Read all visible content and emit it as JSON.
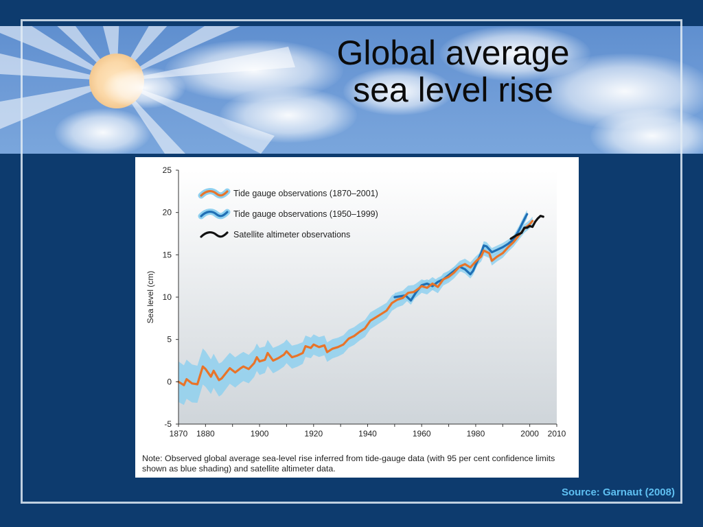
{
  "slide": {
    "title_line1": "Global average",
    "title_line2": "sea level rise",
    "source": "Source:  Garnaut (2008)",
    "colors": {
      "background": "#0d3b6e",
      "source_text": "#5fc0f2"
    }
  },
  "chart_data": {
    "type": "line",
    "title": "",
    "xlabel": "",
    "ylabel": "Sea level (cm)",
    "xlim": [
      1870,
      2010
    ],
    "ylim": [
      -5,
      25
    ],
    "x_ticks": [
      "1870",
      "1880",
      "1900",
      "1920",
      "1940",
      "1960",
      "1980",
      "2000",
      "2010"
    ],
    "y_ticks": [
      "-5",
      "0",
      "5",
      "10",
      "15",
      "20",
      "25"
    ],
    "grid": false,
    "legend_position": "top-left",
    "note": "Note: Observed global average sea-level rise inferred from tide-gauge data (with 95 per cent confidence limits shown as blue shading) and satellite altimeter data.",
    "series": [
      {
        "name": "Tide gauge observations (1870–2001)",
        "color": "#e8742a",
        "band_color": "#8fd0ef",
        "points": [
          [
            1870,
            0.0
          ],
          [
            1872,
            -0.4
          ],
          [
            1873,
            0.3
          ],
          [
            1875,
            -0.2
          ],
          [
            1877,
            -0.3
          ],
          [
            1879,
            1.8
          ],
          [
            1880,
            1.5
          ],
          [
            1882,
            0.6
          ],
          [
            1883,
            1.3
          ],
          [
            1885,
            0.2
          ],
          [
            1886,
            0.4
          ],
          [
            1888,
            1.2
          ],
          [
            1889,
            1.6
          ],
          [
            1891,
            1.1
          ],
          [
            1893,
            1.6
          ],
          [
            1894,
            1.8
          ],
          [
            1896,
            1.5
          ],
          [
            1898,
            2.2
          ],
          [
            1899,
            2.9
          ],
          [
            1900,
            2.4
          ],
          [
            1902,
            2.6
          ],
          [
            1903,
            3.4
          ],
          [
            1905,
            2.5
          ],
          [
            1907,
            2.8
          ],
          [
            1909,
            3.2
          ],
          [
            1910,
            3.6
          ],
          [
            1912,
            2.9
          ],
          [
            1914,
            3.1
          ],
          [
            1916,
            3.4
          ],
          [
            1917,
            4.2
          ],
          [
            1919,
            4.0
          ],
          [
            1920,
            4.4
          ],
          [
            1922,
            4.1
          ],
          [
            1924,
            4.3
          ],
          [
            1925,
            3.5
          ],
          [
            1927,
            3.9
          ],
          [
            1929,
            4.1
          ],
          [
            1931,
            4.4
          ],
          [
            1933,
            5.1
          ],
          [
            1935,
            5.4
          ],
          [
            1937,
            5.9
          ],
          [
            1939,
            6.3
          ],
          [
            1941,
            7.2
          ],
          [
            1943,
            7.6
          ],
          [
            1945,
            8.0
          ],
          [
            1947,
            8.4
          ],
          [
            1949,
            9.3
          ],
          [
            1951,
            9.7
          ],
          [
            1953,
            9.9
          ],
          [
            1955,
            10.5
          ],
          [
            1957,
            10.6
          ],
          [
            1958,
            10.8
          ],
          [
            1960,
            11.3
          ],
          [
            1962,
            11.1
          ],
          [
            1964,
            11.6
          ],
          [
            1966,
            11.2
          ],
          [
            1968,
            12.1
          ],
          [
            1970,
            12.4
          ],
          [
            1972,
            12.9
          ],
          [
            1974,
            13.6
          ],
          [
            1976,
            13.9
          ],
          [
            1978,
            13.5
          ],
          [
            1980,
            14.2
          ],
          [
            1982,
            14.8
          ],
          [
            1983,
            15.5
          ],
          [
            1985,
            15.2
          ],
          [
            1986,
            14.3
          ],
          [
            1988,
            14.8
          ],
          [
            1990,
            15.2
          ],
          [
            1992,
            15.9
          ],
          [
            1994,
            16.5
          ],
          [
            1996,
            17.3
          ],
          [
            1998,
            18.1
          ],
          [
            2000,
            18.6
          ],
          [
            2001,
            19.0
          ]
        ],
        "band_halfwidth": [
          [
            1870,
            2.4
          ],
          [
            1890,
            1.8
          ],
          [
            1920,
            1.2
          ],
          [
            1950,
            0.9
          ],
          [
            1980,
            0.6
          ],
          [
            2001,
            0.5
          ]
        ]
      },
      {
        "name": "Tide gauge observations (1950–1999)",
        "color": "#1f6fb5",
        "band_color": "#8fd0ef",
        "points": [
          [
            1950,
            10.0
          ],
          [
            1952,
            10.1
          ],
          [
            1954,
            10.2
          ],
          [
            1956,
            9.6
          ],
          [
            1958,
            10.6
          ],
          [
            1960,
            11.4
          ],
          [
            1962,
            11.6
          ],
          [
            1964,
            11.3
          ],
          [
            1966,
            11.8
          ],
          [
            1968,
            12.1
          ],
          [
            1970,
            12.6
          ],
          [
            1972,
            13.1
          ],
          [
            1974,
            13.6
          ],
          [
            1976,
            13.3
          ],
          [
            1978,
            12.7
          ],
          [
            1979,
            13.1
          ],
          [
            1980,
            13.8
          ],
          [
            1982,
            15.2
          ],
          [
            1983,
            16.1
          ],
          [
            1984,
            16.0
          ],
          [
            1986,
            15.3
          ],
          [
            1988,
            15.6
          ],
          [
            1990,
            15.9
          ],
          [
            1992,
            16.3
          ],
          [
            1994,
            16.8
          ],
          [
            1996,
            17.9
          ],
          [
            1998,
            19.2
          ],
          [
            1999,
            19.8
          ]
        ],
        "band_halfwidth": [
          [
            1950,
            0.5
          ],
          [
            1999,
            0.5
          ]
        ]
      },
      {
        "name": "Satellite altimeter observations",
        "color": "#111111",
        "points": [
          [
            1993,
            16.9
          ],
          [
            1995,
            17.3
          ],
          [
            1997,
            17.6
          ],
          [
            1998,
            18.2
          ],
          [
            1999,
            18.2
          ],
          [
            2000,
            18.4
          ],
          [
            2001,
            18.3
          ],
          [
            2002,
            18.9
          ],
          [
            2003,
            19.3
          ],
          [
            2004,
            19.6
          ],
          [
            2005,
            19.5
          ]
        ]
      }
    ]
  }
}
